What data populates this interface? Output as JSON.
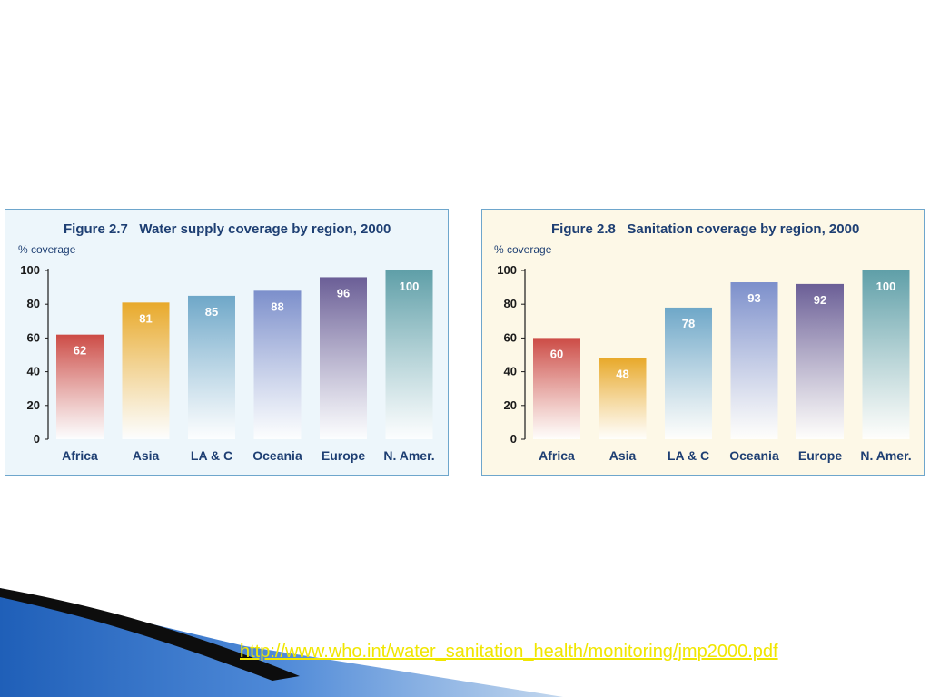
{
  "chart_data": [
    {
      "type": "bar",
      "title": "Figure 2.7   Water supply coverage by region, 2000",
      "ylabel": "% coverage",
      "xlabel": "",
      "categories": [
        "Africa",
        "Asia",
        "LA & C",
        "Oceania",
        "Europe",
        "N. Amer."
      ],
      "values": [
        62,
        81,
        85,
        88,
        96,
        100
      ],
      "ylim": [
        0,
        100
      ],
      "yticks": [
        0,
        20,
        40,
        60,
        80,
        100
      ],
      "grid": false,
      "bar_colors": [
        "#cc4b45",
        "#e8a92a",
        "#6ea7c8",
        "#7c8fcb",
        "#6a5e96",
        "#5f9fa8"
      ]
    },
    {
      "type": "bar",
      "title": "Figure 2.8   Sanitation coverage by region, 2000",
      "ylabel": "% coverage",
      "xlabel": "",
      "categories": [
        "Africa",
        "Asia",
        "LA & C",
        "Oceania",
        "Europe",
        "N. Amer."
      ],
      "values": [
        60,
        48,
        78,
        93,
        92,
        100
      ],
      "ylim": [
        0,
        100
      ],
      "yticks": [
        0,
        20,
        40,
        60,
        80,
        100
      ],
      "grid": false,
      "bar_colors": [
        "#cc4b45",
        "#e8a92a",
        "#6ea7c8",
        "#7c8fcb",
        "#6a5e96",
        "#5f9fa8"
      ]
    }
  ],
  "footer": {
    "link_text": "http://www.who.int/water_sanitation_health/monitoring/jmp2000.pdf"
  }
}
